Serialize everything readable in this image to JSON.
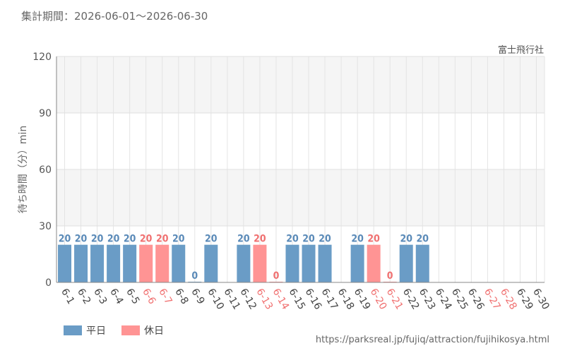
{
  "header": {
    "period_text": "集計期間：2026-06-01～2026-06-30",
    "attraction_name": "富士飛行社"
  },
  "footer": {
    "source_url": "https://parksreal.jp/fujiq/attraction/fujihikosya.html"
  },
  "colors": {
    "weekday": "#6a9cc6",
    "holiday": "#ff9494",
    "weekday_text": "#5a8ab8",
    "holiday_text": "#f07070",
    "band": "#f5f5f5"
  },
  "chart_data": {
    "type": "bar",
    "ylabel": "待ち時間（分）min",
    "xlabel": "",
    "ylim": [
      0,
      120
    ],
    "yticks": [
      0,
      30,
      60,
      90,
      120
    ],
    "grid": true,
    "legend_position": "bottom-left",
    "legend": [
      {
        "key": "weekday",
        "label": "平日"
      },
      {
        "key": "holiday",
        "label": "休日"
      }
    ],
    "categories": [
      "6-1",
      "6-2",
      "6-3",
      "6-4",
      "6-5",
      "6-6",
      "6-7",
      "6-8",
      "6-9",
      "6-10",
      "6-11",
      "6-12",
      "6-13",
      "6-14",
      "6-15",
      "6-16",
      "6-17",
      "6-18",
      "6-19",
      "6-20",
      "6-21",
      "6-22",
      "6-23",
      "6-24",
      "6-25",
      "6-26",
      "6-27",
      "6-28",
      "6-29",
      "6-30"
    ],
    "day_type": [
      "weekday",
      "weekday",
      "weekday",
      "weekday",
      "weekday",
      "holiday",
      "holiday",
      "weekday",
      "weekday",
      "weekday",
      "weekday",
      "weekday",
      "holiday",
      "holiday",
      "weekday",
      "weekday",
      "weekday",
      "weekday",
      "weekday",
      "holiday",
      "holiday",
      "weekday",
      "weekday",
      "weekday",
      "weekday",
      "weekday",
      "holiday",
      "holiday",
      "weekday",
      "weekday"
    ],
    "values": [
      20,
      20,
      20,
      20,
      20,
      20,
      20,
      20,
      0,
      20,
      null,
      20,
      20,
      0,
      20,
      20,
      20,
      null,
      20,
      20,
      0,
      20,
      20,
      null,
      null,
      null,
      null,
      null,
      null,
      null
    ]
  }
}
